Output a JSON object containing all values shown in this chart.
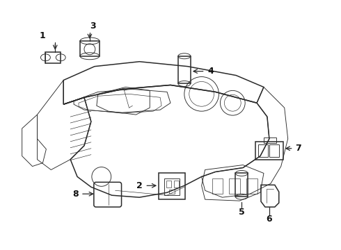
{
  "background_color": "#ffffff",
  "line_color": "#2a2a2a",
  "label_color": "#111111",
  "fig_width": 4.9,
  "fig_height": 3.6,
  "dpi": 100,
  "lw_main": 1.1,
  "lw_thin": 0.65,
  "lw_detail": 0.45
}
